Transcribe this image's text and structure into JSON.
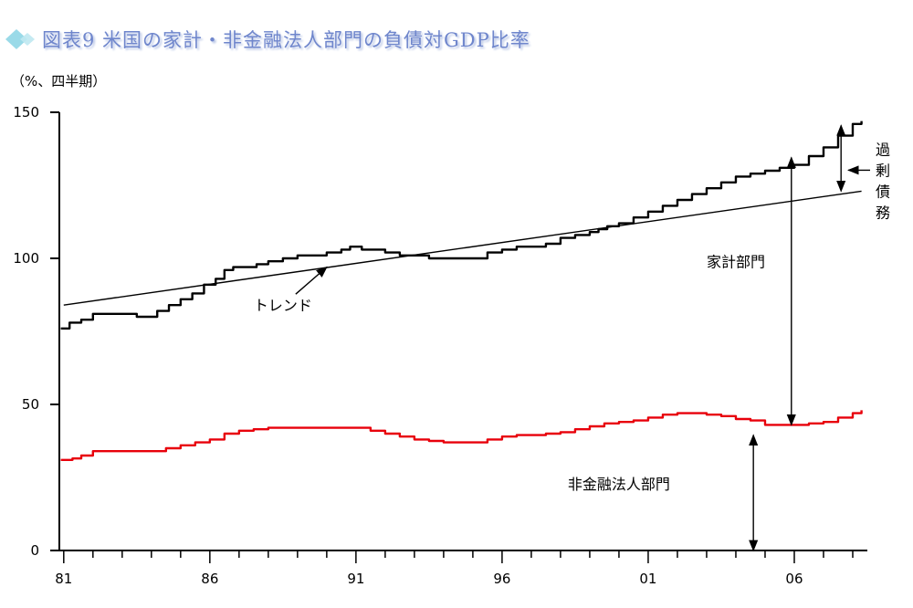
{
  "title": "図表9 米国の家計・非金融法人部門の負債対GDP比率",
  "unit_label": "（%、四半期）",
  "colors": {
    "title": "#6f86cc",
    "household": "#000000",
    "nonfinancial": "#e8000b",
    "trend": "#000000",
    "icon": "#8fd6e6"
  },
  "chart_data": {
    "type": "line",
    "title": "図表9 米国の家計・非金融法人部門の負債対GDP比率",
    "ylabel": "（%、四半期）",
    "xlabel": "",
    "xlim": [
      1980.85,
      2008.5
    ],
    "ylim": [
      0,
      150
    ],
    "yticks": [
      0,
      50,
      100,
      150
    ],
    "xticks": [
      {
        "value": 1981,
        "label": "81"
      },
      {
        "value": 1986,
        "label": "86"
      },
      {
        "value": 1991,
        "label": "91"
      },
      {
        "value": 1996,
        "label": "96"
      },
      {
        "value": 2001,
        "label": "01"
      },
      {
        "value": 2006,
        "label": "06"
      }
    ],
    "grid": false,
    "series": [
      {
        "name": "家計部門",
        "x": [
          1980.9,
          1981.2,
          1981.6,
          1982.0,
          1982.5,
          1983.0,
          1983.5,
          1983.8,
          1984.2,
          1984.6,
          1985.0,
          1985.4,
          1985.8,
          1986.2,
          1986.5,
          1986.8,
          1987.2,
          1987.6,
          1988.0,
          1988.5,
          1989.0,
          1989.5,
          1990.0,
          1990.5,
          1990.8,
          1991.2,
          1991.6,
          1992.0,
          1992.5,
          1993.0,
          1993.5,
          1994.0,
          1994.5,
          1995.0,
          1995.5,
          1996.0,
          1996.5,
          1997.0,
          1997.5,
          1998.0,
          1998.5,
          1999.0,
          1999.3,
          1999.6,
          2000.0,
          2000.5,
          2001.0,
          2001.5,
          2002.0,
          2002.5,
          2003.0,
          2003.5,
          2004.0,
          2004.5,
          2005.0,
          2005.5,
          2006.0,
          2006.5,
          2007.0,
          2007.5,
          2008.0,
          2008.3
        ],
        "values": [
          76,
          78,
          79,
          81,
          81,
          81,
          80,
          80,
          82,
          84,
          86,
          88,
          91,
          93,
          96,
          97,
          97,
          98,
          99,
          100,
          101,
          101,
          102,
          103,
          104,
          103,
          103,
          102,
          101,
          101,
          100,
          100,
          100,
          100,
          102,
          103,
          104,
          104,
          105,
          107,
          108,
          109,
          110,
          111,
          112,
          114,
          116,
          118,
          120,
          122,
          124,
          126,
          128,
          129,
          130,
          131,
          132,
          135,
          138,
          142,
          146,
          147
        ]
      },
      {
        "name": "非金融法人部門",
        "x": [
          1980.9,
          1981.3,
          1981.6,
          1982.0,
          1982.5,
          1983.0,
          1983.5,
          1984.0,
          1984.5,
          1985.0,
          1985.5,
          1986.0,
          1986.5,
          1987.0,
          1987.5,
          1988.0,
          1988.5,
          1989.0,
          1989.5,
          1990.0,
          1990.5,
          1991.0,
          1991.5,
          1992.0,
          1992.5,
          1993.0,
          1993.5,
          1994.0,
          1994.5,
          1995.0,
          1995.5,
          1996.0,
          1996.5,
          1997.0,
          1997.5,
          1998.0,
          1998.5,
          1999.0,
          1999.5,
          2000.0,
          2000.5,
          2001.0,
          2001.5,
          2002.0,
          2002.5,
          2003.0,
          2003.5,
          2004.0,
          2004.5,
          2005.0,
          2005.5,
          2006.0,
          2006.5,
          2007.0,
          2007.5,
          2008.0,
          2008.3
        ],
        "values": [
          31,
          31.5,
          32.5,
          34,
          34,
          34,
          34,
          34,
          35,
          36,
          37,
          38,
          40,
          41,
          41.5,
          42,
          42,
          42,
          42,
          42,
          42,
          42,
          41,
          40,
          39,
          38,
          37.5,
          37,
          37,
          37,
          38,
          39,
          39.5,
          39.5,
          40,
          40.5,
          41.5,
          42.5,
          43.5,
          44,
          44.5,
          45.5,
          46.5,
          47,
          47,
          46.5,
          46,
          45,
          44.5,
          43,
          43,
          43,
          43.5,
          44,
          45.5,
          47,
          48
        ]
      },
      {
        "name": "トレンド",
        "x": [
          1981,
          2008.3
        ],
        "values": [
          84,
          123
        ]
      }
    ],
    "annotations": [
      {
        "text": "トレンド",
        "x": 1988.5,
        "y": 84,
        "arrow_to": [
          1990.0,
          97
        ]
      },
      {
        "text": "家計部門",
        "x": 2004.0,
        "y": 97,
        "arrow_span": {
          "x": 2005.9,
          "from": 43,
          "to": 134.5
        }
      },
      {
        "text": "非金融法人部門",
        "x": 2000.0,
        "y": 21,
        "arrow_span": {
          "x": 2004.6,
          "from": 0,
          "to": 39.5
        }
      },
      {
        "text": "過剰債務",
        "x": 2009.0,
        "y": 133,
        "arrow_span": {
          "x": 2007.6,
          "from": 123,
          "to": 145.5
        },
        "pointer_from": [
          2009.0,
          133
        ]
      }
    ]
  }
}
